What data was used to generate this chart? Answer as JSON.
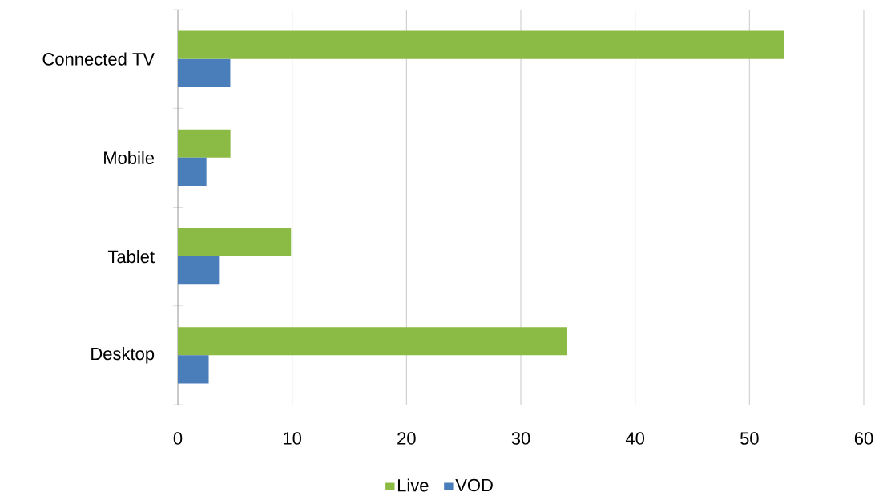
{
  "chart_data": {
    "type": "bar",
    "orientation": "horizontal",
    "categories": [
      "Connected TV",
      "Mobile",
      "Tablet",
      "Desktop"
    ],
    "series": [
      {
        "name": "Live",
        "color": "#8cbb45",
        "values": [
          53,
          4.6,
          9.9,
          34
        ]
      },
      {
        "name": "VOD",
        "color": "#4a7ebb",
        "values": [
          4.6,
          2.5,
          3.6,
          2.7
        ]
      }
    ],
    "xlim": [
      0,
      60
    ],
    "xticks": [
      0,
      10,
      20,
      30,
      40,
      50,
      60
    ],
    "grid": "x",
    "legend": "bottom"
  }
}
